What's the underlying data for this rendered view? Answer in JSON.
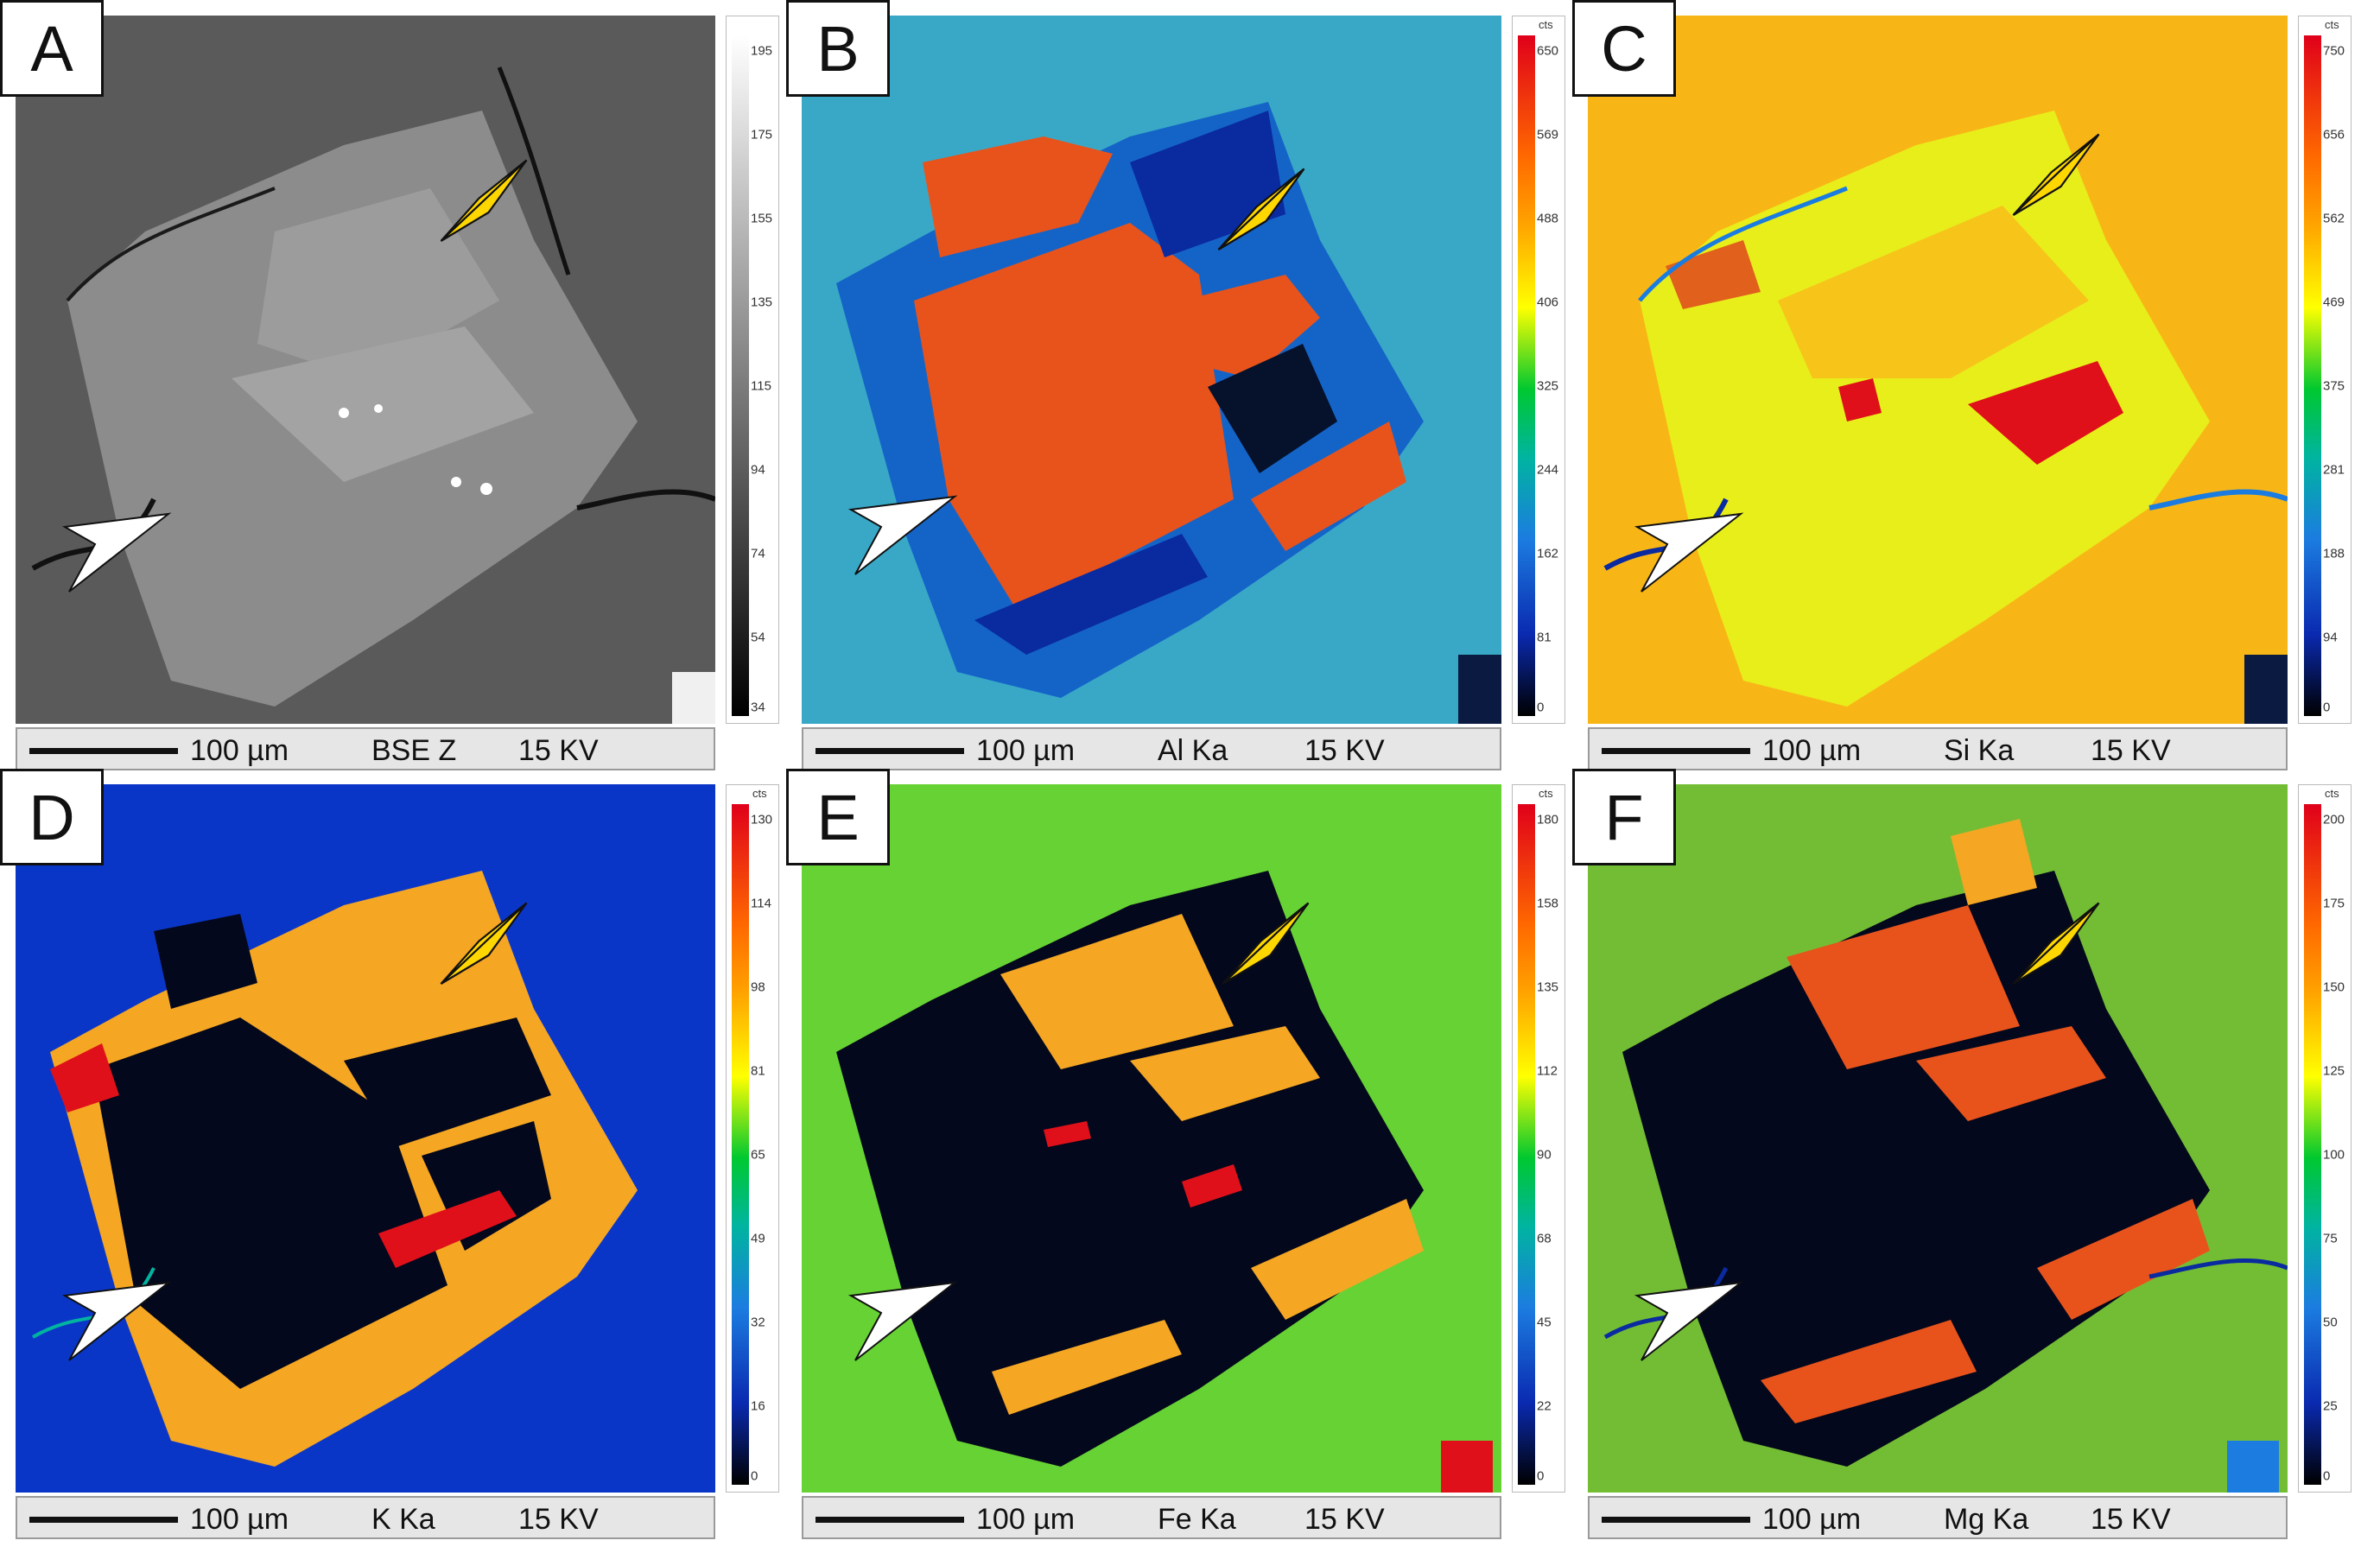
{
  "panels": [
    {
      "letter": "A",
      "scale_length": "100 µm",
      "signal": "BSE Z",
      "voltage": "15 KV",
      "colorbar_unit": "",
      "colorbar_ticks": [
        "195",
        "175",
        "155",
        "135",
        "115",
        "94",
        "74",
        "54",
        "34"
      ],
      "palette": "gray"
    },
    {
      "letter": "B",
      "scale_length": "100 µm",
      "signal": "Al Ka",
      "voltage": "15 KV",
      "colorbar_unit": "cts",
      "colorbar_ticks": [
        "650",
        "569",
        "488",
        "406",
        "325",
        "244",
        "162",
        "81",
        "0"
      ],
      "palette": "rainbow"
    },
    {
      "letter": "C",
      "scale_length": "100 µm",
      "signal": "Si Ka",
      "voltage": "15 KV",
      "colorbar_unit": "cts",
      "colorbar_ticks": [
        "750",
        "656",
        "562",
        "469",
        "375",
        "281",
        "188",
        "94",
        "0"
      ],
      "palette": "rainbow"
    },
    {
      "letter": "D",
      "scale_length": "100 µm",
      "signal": "K Ka",
      "voltage": "15 KV",
      "colorbar_unit": "cts",
      "colorbar_ticks": [
        "130",
        "114",
        "98",
        "81",
        "65",
        "49",
        "32",
        "16",
        "0"
      ],
      "palette": "rainbow"
    },
    {
      "letter": "E",
      "scale_length": "100 µm",
      "signal": "Fe Ka",
      "voltage": "15 KV",
      "colorbar_unit": "cts",
      "colorbar_ticks": [
        "180",
        "158",
        "135",
        "112",
        "90",
        "68",
        "45",
        "22",
        "0"
      ],
      "palette": "rainbow"
    },
    {
      "letter": "F",
      "scale_length": "100 µm",
      "signal": "Mg Ka",
      "voltage": "15 KV",
      "colorbar_unit": "cts",
      "colorbar_ticks": [
        "200",
        "175",
        "150",
        "125",
        "100",
        "75",
        "50",
        "25",
        "0"
      ],
      "palette": "rainbow"
    }
  ],
  "colors": {
    "yellow_arrow": "#ffd700",
    "white_arrow": "#ffffff"
  },
  "icons": [
    "yellow-arrowhead-icon",
    "white-arrowhead-icon"
  ]
}
